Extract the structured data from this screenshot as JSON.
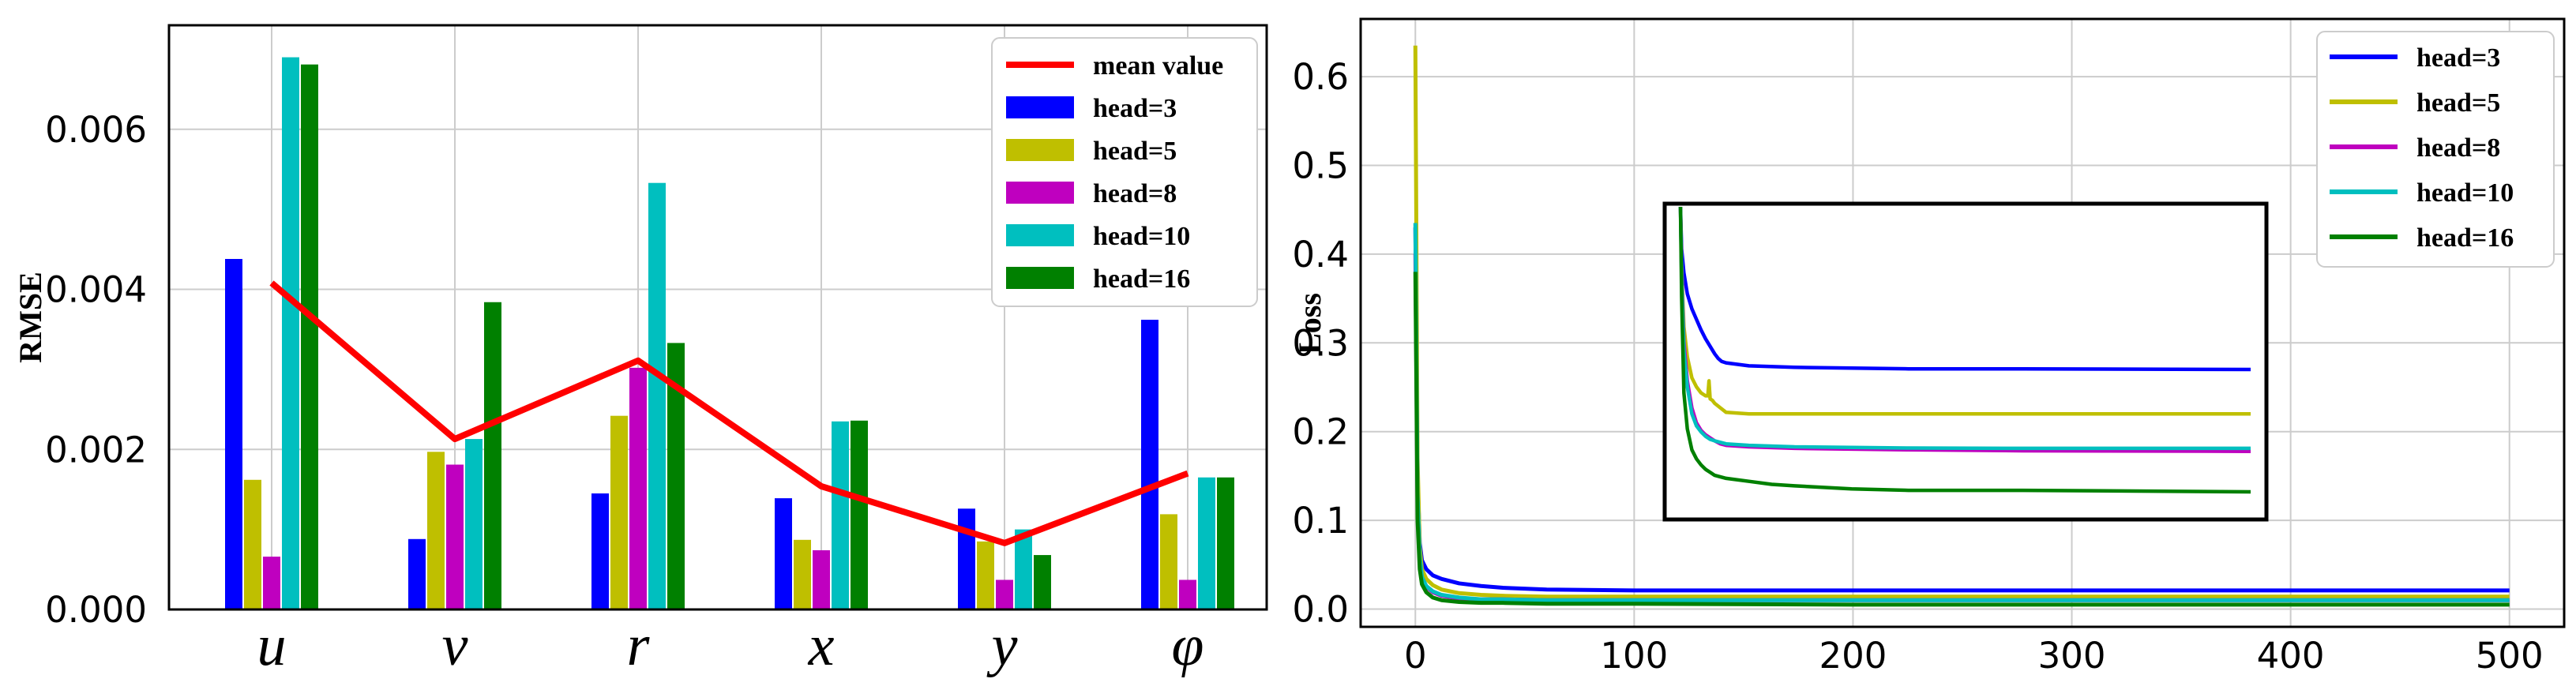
{
  "chart_data": [
    {
      "type": "bar",
      "ylabel": "RMSE",
      "xlabel": "",
      "ylim": [
        0,
        0.0073
      ],
      "yticks": [
        "0.000",
        "0.002",
        "0.004",
        "0.006"
      ],
      "ytick_values": [
        0,
        0.002,
        0.004,
        0.006
      ],
      "grid": true,
      "legend_position": "top-right",
      "categories": [
        "u",
        "v",
        "r",
        "x",
        "y",
        "φ"
      ],
      "series": [
        {
          "name": "head=3",
          "color": "#0000ff",
          "values": [
            0.00438,
            0.00088,
            0.00145,
            0.00139,
            0.00126,
            0.00362
          ]
        },
        {
          "name": "head=5",
          "color": "#bfbf00",
          "values": [
            0.00162,
            0.00197,
            0.00242,
            0.00087,
            0.00085,
            0.00119
          ]
        },
        {
          "name": "head=8",
          "color": "#bf00bf",
          "values": [
            0.00066,
            0.00181,
            0.00302,
            0.00074,
            0.00037,
            0.00037
          ]
        },
        {
          "name": "head=10",
          "color": "#00bfbf",
          "values": [
            0.0069,
            0.00213,
            0.00533,
            0.00235,
            0.001,
            0.00165
          ]
        },
        {
          "name": "head=16",
          "color": "#008000",
          "values": [
            0.00681,
            0.00384,
            0.00333,
            0.00236,
            0.00068,
            0.00165
          ]
        }
      ],
      "mean": {
        "name": "mean value",
        "color": "#ff0000",
        "values": [
          0.00408,
          0.00213,
          0.00311,
          0.00154,
          0.00083,
          0.0017
        ]
      }
    },
    {
      "type": "line",
      "ylabel": "Loss",
      "xlabel": "",
      "xlim": [
        -25,
        525
      ],
      "ylim": [
        -0.02,
        0.665
      ],
      "xticks": [
        "0",
        "100",
        "200",
        "300",
        "400",
        "500"
      ],
      "xtick_values": [
        0,
        100,
        200,
        300,
        400,
        500
      ],
      "yticks": [
        "0.0",
        "0.1",
        "0.2",
        "0.3",
        "0.4",
        "0.5",
        "0.6"
      ],
      "ytick_values": [
        0,
        0.1,
        0.2,
        0.3,
        0.4,
        0.5,
        0.6
      ],
      "grid": true,
      "legend_position": "top-right",
      "series": [
        {
          "name": "head=3",
          "color": "#0000ff",
          "x": [
            0,
            1,
            2,
            3,
            5,
            8,
            12,
            20,
            30,
            40,
            60,
            100,
            200,
            300,
            400,
            500
          ],
          "y": [
            0.43,
            0.15,
            0.075,
            0.055,
            0.045,
            0.038,
            0.034,
            0.029,
            0.026,
            0.024,
            0.022,
            0.021,
            0.021,
            0.021,
            0.021,
            0.021
          ]
        },
        {
          "name": "head=5",
          "color": "#bfbf00",
          "x": [
            0,
            1,
            2,
            3,
            5,
            8,
            12,
            20,
            30,
            40,
            60,
            100,
            200,
            300,
            400,
            500
          ],
          "y": [
            0.635,
            0.17,
            0.07,
            0.045,
            0.034,
            0.027,
            0.022,
            0.018,
            0.016,
            0.015,
            0.014,
            0.014,
            0.014,
            0.014,
            0.014,
            0.014
          ]
        },
        {
          "name": "head=8",
          "color": "#bf00bf",
          "x": [
            0,
            1,
            2,
            3,
            5,
            8,
            12,
            20,
            30,
            40,
            60,
            100,
            200,
            300,
            400,
            500
          ],
          "y": [
            0.4,
            0.12,
            0.055,
            0.035,
            0.025,
            0.019,
            0.015,
            0.012,
            0.011,
            0.011,
            0.01,
            0.01,
            0.01,
            0.01,
            0.01,
            0.01
          ]
        },
        {
          "name": "head=10",
          "color": "#00bfbf",
          "x": [
            0,
            1,
            2,
            3,
            5,
            8,
            12,
            20,
            30,
            40,
            60,
            100,
            200,
            300,
            400,
            500
          ],
          "y": [
            0.435,
            0.13,
            0.058,
            0.036,
            0.026,
            0.02,
            0.016,
            0.013,
            0.011,
            0.011,
            0.01,
            0.01,
            0.01,
            0.01,
            0.01,
            0.01
          ]
        },
        {
          "name": "head=16",
          "color": "#008000",
          "x": [
            0,
            1,
            2,
            3,
            5,
            8,
            12,
            20,
            30,
            40,
            60,
            100,
            200,
            300,
            400,
            500
          ],
          "y": [
            0.38,
            0.1,
            0.045,
            0.028,
            0.019,
            0.013,
            0.01,
            0.008,
            0.007,
            0.007,
            0.006,
            0.006,
            0.005,
            0.005,
            0.005,
            0.005
          ]
        }
      ],
      "inset": {
        "series": [
          {
            "name": "head=3",
            "x": [
              0,
              1,
              3,
              6,
              10,
              14,
              18,
              22,
              26,
              30,
              33,
              36,
              40,
              60,
              100,
              200,
              300,
              500
            ],
            "y": [
              1.0,
              0.86,
              0.78,
              0.71,
              0.66,
              0.625,
              0.59,
              0.56,
              0.535,
              0.51,
              0.495,
              0.485,
              0.48,
              0.47,
              0.465,
              0.46,
              0.46,
              0.458
            ]
          },
          {
            "name": "head=5",
            "x": [
              0,
              1,
              3,
              6,
              10,
              14,
              18,
              22,
              24,
              25,
              26,
              28,
              30,
              35,
              40,
              60,
              100,
              200,
              300,
              500
            ],
            "y": [
              1.0,
              0.8,
              0.6,
              0.5,
              0.43,
              0.4,
              0.38,
              0.37,
              0.37,
              0.42,
              0.36,
              0.355,
              0.345,
              0.33,
              0.315,
              0.31,
              0.31,
              0.31,
              0.31,
              0.31
            ]
          },
          {
            "name": "head=8",
            "x": [
              0,
              1,
              3,
              6,
              10,
              14,
              18,
              22,
              26,
              30,
              35,
              40,
              60,
              100,
              200,
              300,
              500
            ],
            "y": [
              1.0,
              0.78,
              0.55,
              0.42,
              0.33,
              0.28,
              0.255,
              0.24,
              0.23,
              0.22,
              0.21,
              0.205,
              0.2,
              0.195,
              0.19,
              0.187,
              0.185
            ]
          },
          {
            "name": "head=10",
            "x": [
              0,
              1,
              3,
              6,
              10,
              14,
              18,
              22,
              26,
              30,
              35,
              40,
              60,
              100,
              200,
              300,
              500
            ],
            "y": [
              1.0,
              0.76,
              0.52,
              0.4,
              0.31,
              0.27,
              0.25,
              0.235,
              0.225,
              0.22,
              0.215,
              0.21,
              0.205,
              0.2,
              0.196,
              0.195,
              0.195
            ]
          },
          {
            "name": "head=16",
            "x": [
              0,
              1,
              3,
              6,
              10,
              14,
              18,
              22,
              26,
              30,
              40,
              60,
              80,
              100,
              150,
              200,
              300,
              500
            ],
            "y": [
              1.0,
              0.7,
              0.38,
              0.26,
              0.19,
              0.16,
              0.14,
              0.125,
              0.115,
              0.105,
              0.095,
              0.085,
              0.075,
              0.07,
              0.06,
              0.055,
              0.055,
              0.05
            ]
          }
        ]
      }
    }
  ]
}
